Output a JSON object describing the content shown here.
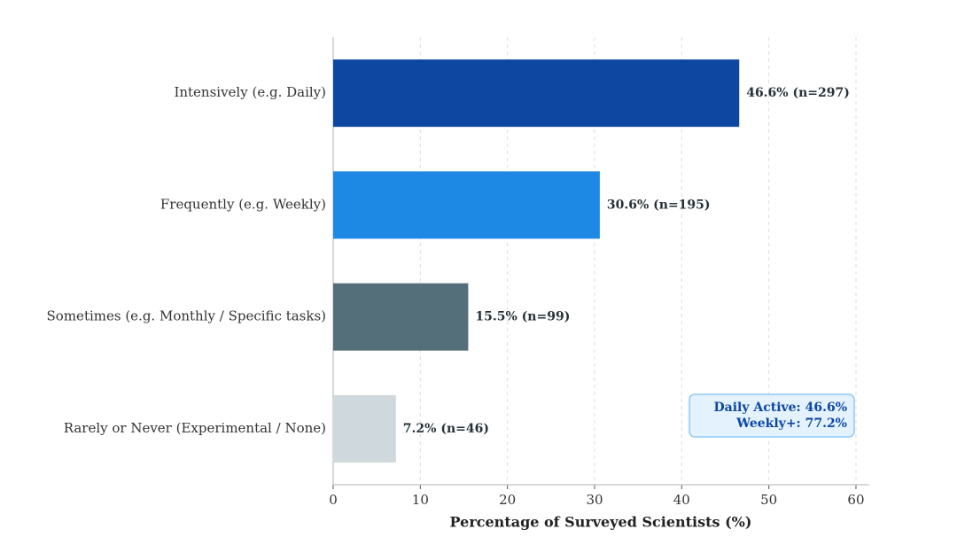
{
  "chart_data": {
    "type": "barh",
    "categories": [
      "Intensively (e.g. Daily)",
      "Frequently (e.g. Weekly)",
      "Sometimes (e.g. Monthly / Specific tasks)",
      "Rarely or Never (Experimental / None)"
    ],
    "values": [
      46.6,
      30.6,
      15.5,
      7.2
    ],
    "value_labels": [
      "46.6% (n=297)",
      "30.6% (n=195)",
      "15.5% (n=99)",
      "7.2% (n=46)"
    ],
    "colors": [
      "#0d47a1",
      "#1e88e5",
      "#546e7a",
      "#cfd8dc"
    ],
    "xlabel": "Percentage of Surveyed Scientists (%)",
    "xlim": [
      0,
      61.5
    ],
    "xticks": [
      0,
      10,
      20,
      30,
      40,
      50,
      60
    ],
    "grid": true,
    "annotation": [
      "Daily Active: 46.6%",
      "Weekly+: 77.2%"
    ]
  }
}
